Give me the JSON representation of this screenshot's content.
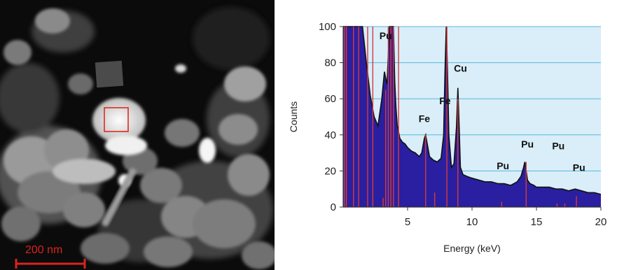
{
  "micrograph": {
    "scale_bar_label": "200 nm",
    "roi_box_color": "#e02a20",
    "scale_bar_color": "#d8231f"
  },
  "chart_data": {
    "type": "area",
    "title": "",
    "xlabel": "Energy (keV)",
    "ylabel": "Counts",
    "xlim": [
      0,
      20
    ],
    "ylim": [
      0,
      100
    ],
    "x_ticks": [
      5,
      10,
      15,
      20
    ],
    "y_ticks": [
      0,
      20,
      40,
      60,
      80,
      100
    ],
    "grid": "horizontal",
    "colors": {
      "fill": "#2a1fa0",
      "line": "#111111",
      "marker_lines": "#d83a3a",
      "background": "#d9eef9",
      "grid": "#59b7da"
    },
    "spectrum": {
      "x": [
        0.0,
        0.3,
        0.6,
        0.9,
        1.2,
        1.5,
        1.8,
        2.1,
        2.4,
        2.7,
        3.0,
        3.2,
        3.4,
        3.6,
        3.7,
        3.8,
        3.9,
        4.0,
        4.1,
        4.2,
        4.4,
        4.6,
        4.8,
        5.0,
        5.3,
        5.6,
        5.9,
        6.1,
        6.3,
        6.4,
        6.5,
        6.7,
        7.0,
        7.3,
        7.6,
        7.8,
        7.9,
        8.0,
        8.1,
        8.2,
        8.4,
        8.6,
        8.8,
        8.9,
        9.0,
        9.1,
        9.3,
        9.6,
        10.0,
        10.5,
        11.0,
        11.5,
        12.0,
        12.5,
        13.0,
        13.5,
        13.8,
        14.0,
        14.1,
        14.2,
        14.3,
        14.5,
        14.8,
        15.0,
        15.5,
        16.0,
        16.5,
        17.0,
        17.5,
        18.0,
        18.5,
        19.0,
        19.5,
        20.0
      ],
      "counts": [
        100,
        100,
        100,
        100,
        100,
        100,
        80,
        62,
        50,
        45,
        60,
        75,
        68,
        100,
        100,
        100,
        100,
        70,
        55,
        45,
        38,
        36,
        35,
        33,
        31,
        30,
        28,
        30,
        38,
        40,
        36,
        28,
        26,
        25,
        27,
        40,
        75,
        100,
        75,
        40,
        22,
        24,
        45,
        66,
        45,
        22,
        18,
        17,
        16,
        15,
        14,
        14,
        13,
        13,
        12,
        14,
        17,
        22,
        25,
        20,
        15,
        13,
        12,
        11,
        11,
        11,
        10,
        10,
        9,
        10,
        9,
        8,
        8,
        7
      ]
    },
    "marker_lines": [
      {
        "x": 0.1,
        "height": 100
      },
      {
        "x": 0.25,
        "height": 100
      },
      {
        "x": 0.8,
        "height": 100
      },
      {
        "x": 1.2,
        "height": 100
      },
      {
        "x": 1.9,
        "height": 100
      },
      {
        "x": 2.3,
        "height": 100
      },
      {
        "x": 3.1,
        "height": 5
      },
      {
        "x": 3.3,
        "height": 65
      },
      {
        "x": 3.5,
        "height": 100
      },
      {
        "x": 3.7,
        "height": 100
      },
      {
        "x": 3.9,
        "height": 100
      },
      {
        "x": 4.3,
        "height": 100
      },
      {
        "x": 6.4,
        "height": 40
      },
      {
        "x": 7.1,
        "height": 8
      },
      {
        "x": 8.05,
        "height": 100
      },
      {
        "x": 8.9,
        "height": 60
      },
      {
        "x": 12.3,
        "height": 3
      },
      {
        "x": 14.2,
        "height": 25
      },
      {
        "x": 16.6,
        "height": 2
      },
      {
        "x": 17.2,
        "height": 2
      },
      {
        "x": 18.1,
        "height": 6
      }
    ],
    "peak_labels": [
      {
        "text": "Pu",
        "x": 3.3,
        "y": 93
      },
      {
        "text": "Cu",
        "x": 9.1,
        "y": 75
      },
      {
        "text": "Fe",
        "x": 7.9,
        "y": 57
      },
      {
        "text": "Fe",
        "x": 6.3,
        "y": 47
      },
      {
        "text": "Pu",
        "x": 12.4,
        "y": 21
      },
      {
        "text": "Pu",
        "x": 14.3,
        "y": 33
      },
      {
        "text": "Pu",
        "x": 16.7,
        "y": 32
      },
      {
        "text": "Pu",
        "x": 18.3,
        "y": 20
      }
    ]
  }
}
